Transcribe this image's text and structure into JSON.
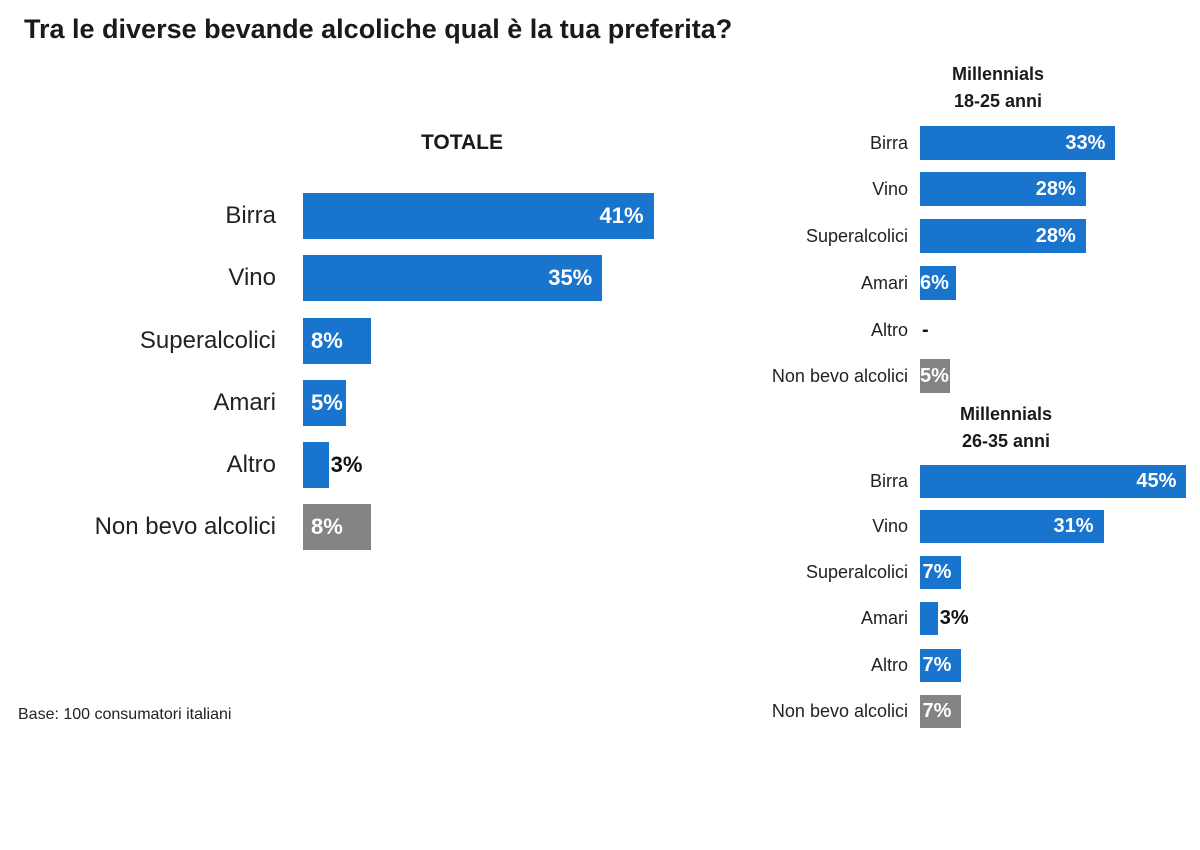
{
  "title": "Tra le diverse bevande alcoliche qual è la tua preferita?",
  "base_note": "Base: 100 consumatori italiani",
  "colors": {
    "primary": "#1874cd",
    "none": "#848484",
    "text": "#222222"
  },
  "chart_data": [
    {
      "type": "bar",
      "orientation": "horizontal",
      "title": "TOTALE",
      "title_lines": [
        "TOTALE"
      ],
      "categories": [
        "Birra",
        "Vino",
        "Superalcolici",
        "Amari",
        "Altro",
        "Non bevo alcolici"
      ],
      "values": [
        41,
        35,
        8,
        5,
        3,
        8
      ],
      "labels": [
        "41%",
        "35%",
        "8%",
        "5%",
        "3%",
        "8%"
      ],
      "unit": "%"
    },
    {
      "type": "bar",
      "orientation": "horizontal",
      "title": "Millennials 18-25 anni",
      "title_lines": [
        "Millennials",
        "18-25 anni"
      ],
      "categories": [
        "Birra",
        "Vino",
        "Superalcolici",
        "Amari",
        "Altro",
        "Non bevo alcolici"
      ],
      "values": [
        33,
        28,
        28,
        6,
        0,
        5
      ],
      "labels": [
        "33%",
        "28%",
        "28%",
        "6%",
        "-",
        "5%"
      ],
      "unit": "%"
    },
    {
      "type": "bar",
      "orientation": "horizontal",
      "title": "Millennials 26-35 anni",
      "title_lines": [
        "Millennials",
        "26-35 anni"
      ],
      "categories": [
        "Birra",
        "Vino",
        "Superalcolici",
        "Amari",
        "Altro",
        "Non bevo alcolici"
      ],
      "values": [
        45,
        31,
        7,
        3,
        7,
        7
      ],
      "labels": [
        "45%",
        "31%",
        "7%",
        "3%",
        "7%",
        "7%"
      ],
      "unit": "%"
    }
  ]
}
